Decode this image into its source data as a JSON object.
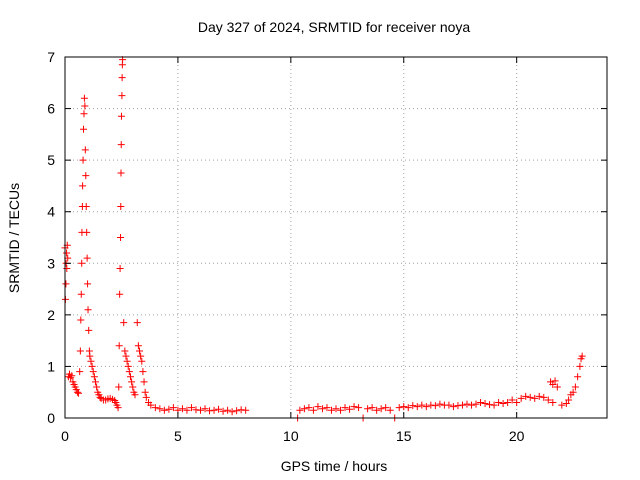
{
  "chart_data": {
    "type": "scatter",
    "title": "Day 327 of 2024, SRMTID for receiver noya",
    "xlabel": "GPS time / hours",
    "ylabel": "SRMTID / TECUs",
    "xlim": [
      0,
      24
    ],
    "ylim": [
      0,
      7
    ],
    "xticks": [
      0,
      5,
      10,
      15,
      20
    ],
    "yticks": [
      0,
      1,
      2,
      3,
      4,
      5,
      6,
      7
    ],
    "grid": true,
    "marker": "+",
    "series": [
      {
        "name": "SRMTID",
        "color": "#ff0000",
        "points": [
          [
            0.0,
            3.3
          ],
          [
            0.02,
            2.3
          ],
          [
            0.04,
            2.6
          ],
          [
            0.05,
            3.0
          ],
          [
            0.07,
            3.2
          ],
          [
            0.08,
            2.9
          ],
          [
            0.1,
            3.35
          ],
          [
            0.12,
            3.1
          ],
          [
            0.15,
            0.8
          ],
          [
            0.2,
            0.85
          ],
          [
            0.25,
            0.78
          ],
          [
            0.3,
            0.82
          ],
          [
            0.35,
            0.7
          ],
          [
            0.4,
            0.65
          ],
          [
            0.45,
            0.6
          ],
          [
            0.5,
            0.55
          ],
          [
            0.55,
            0.5
          ],
          [
            0.6,
            0.48
          ],
          [
            0.65,
            0.9
          ],
          [
            0.68,
            1.3
          ],
          [
            0.7,
            1.9
          ],
          [
            0.72,
            2.4
          ],
          [
            0.74,
            3.0
          ],
          [
            0.75,
            3.6
          ],
          [
            0.77,
            4.1
          ],
          [
            0.78,
            4.5
          ],
          [
            0.8,
            5.0
          ],
          [
            0.82,
            5.6
          ],
          [
            0.84,
            5.9
          ],
          [
            0.86,
            6.2
          ],
          [
            0.88,
            6.05
          ],
          [
            0.9,
            5.2
          ],
          [
            0.92,
            4.7
          ],
          [
            0.94,
            4.1
          ],
          [
            0.96,
            3.6
          ],
          [
            0.98,
            3.1
          ],
          [
            1.0,
            2.6
          ],
          [
            1.02,
            2.1
          ],
          [
            1.05,
            1.7
          ],
          [
            1.08,
            1.3
          ],
          [
            1.1,
            1.2
          ],
          [
            1.15,
            1.1
          ],
          [
            1.2,
            1.0
          ],
          [
            1.25,
            0.9
          ],
          [
            1.3,
            0.8
          ],
          [
            1.35,
            0.7
          ],
          [
            1.4,
            0.6
          ],
          [
            1.45,
            0.5
          ],
          [
            1.5,
            0.45
          ],
          [
            1.55,
            0.4
          ],
          [
            1.6,
            0.38
          ],
          [
            1.7,
            0.35
          ],
          [
            1.8,
            0.35
          ],
          [
            1.9,
            0.37
          ],
          [
            2.0,
            0.38
          ],
          [
            2.1,
            0.36
          ],
          [
            2.2,
            0.34
          ],
          [
            2.25,
            0.3
          ],
          [
            2.3,
            0.25
          ],
          [
            2.35,
            0.2
          ],
          [
            2.38,
            0.6
          ],
          [
            2.4,
            1.4
          ],
          [
            2.42,
            2.4
          ],
          [
            2.44,
            2.9
          ],
          [
            2.46,
            3.5
          ],
          [
            2.47,
            4.1
          ],
          [
            2.48,
            4.75
          ],
          [
            2.49,
            5.3
          ],
          [
            2.5,
            5.85
          ],
          [
            2.52,
            6.25
          ],
          [
            2.53,
            6.6
          ],
          [
            2.54,
            6.85
          ],
          [
            2.55,
            6.95
          ],
          [
            2.6,
            1.85
          ],
          [
            2.65,
            1.3
          ],
          [
            2.7,
            1.2
          ],
          [
            2.75,
            1.1
          ],
          [
            2.8,
            1.0
          ],
          [
            2.85,
            0.9
          ],
          [
            2.9,
            0.8
          ],
          [
            2.95,
            0.7
          ],
          [
            3.0,
            0.6
          ],
          [
            3.05,
            0.5
          ],
          [
            3.1,
            0.45
          ],
          [
            3.2,
            1.85
          ],
          [
            3.25,
            1.4
          ],
          [
            3.3,
            1.3
          ],
          [
            3.35,
            1.2
          ],
          [
            3.4,
            1.1
          ],
          [
            3.45,
            0.9
          ],
          [
            3.5,
            0.7
          ],
          [
            3.55,
            0.5
          ],
          [
            3.6,
            0.4
          ],
          [
            3.7,
            0.3
          ],
          [
            3.8,
            0.25
          ],
          [
            4.0,
            0.2
          ],
          [
            4.2,
            0.18
          ],
          [
            4.4,
            0.15
          ],
          [
            4.6,
            0.17
          ],
          [
            4.8,
            0.2
          ],
          [
            5.0,
            0.15
          ],
          [
            5.2,
            0.18
          ],
          [
            5.4,
            0.15
          ],
          [
            5.6,
            0.2
          ],
          [
            5.8,
            0.16
          ],
          [
            6.0,
            0.15
          ],
          [
            6.2,
            0.18
          ],
          [
            6.4,
            0.14
          ],
          [
            6.6,
            0.15
          ],
          [
            6.8,
            0.17
          ],
          [
            7.0,
            0.13
          ],
          [
            7.2,
            0.15
          ],
          [
            7.4,
            0.12
          ],
          [
            7.6,
            0.14
          ],
          [
            7.8,
            0.16
          ],
          [
            8.0,
            0.15
          ],
          [
            10.3,
            0.0
          ],
          [
            10.4,
            0.15
          ],
          [
            10.6,
            0.18
          ],
          [
            10.8,
            0.2
          ],
          [
            11.0,
            0.15
          ],
          [
            11.2,
            0.22
          ],
          [
            11.4,
            0.18
          ],
          [
            11.6,
            0.2
          ],
          [
            11.8,
            0.15
          ],
          [
            12.0,
            0.18
          ],
          [
            12.2,
            0.15
          ],
          [
            12.4,
            0.2
          ],
          [
            12.6,
            0.17
          ],
          [
            12.8,
            0.22
          ],
          [
            13.0,
            0.2
          ],
          [
            13.2,
            0.0
          ],
          [
            13.4,
            0.18
          ],
          [
            13.6,
            0.2
          ],
          [
            13.8,
            0.15
          ],
          [
            14.0,
            0.18
          ],
          [
            14.2,
            0.2
          ],
          [
            14.4,
            0.15
          ],
          [
            14.6,
            0.0
          ],
          [
            14.8,
            0.2
          ],
          [
            15.0,
            0.22
          ],
          [
            15.2,
            0.2
          ],
          [
            15.4,
            0.24
          ],
          [
            15.6,
            0.22
          ],
          [
            15.8,
            0.25
          ],
          [
            16.0,
            0.22
          ],
          [
            16.2,
            0.25
          ],
          [
            16.4,
            0.24
          ],
          [
            16.6,
            0.27
          ],
          [
            16.8,
            0.25
          ],
          [
            17.0,
            0.25
          ],
          [
            17.2,
            0.22
          ],
          [
            17.4,
            0.24
          ],
          [
            17.6,
            0.25
          ],
          [
            17.8,
            0.27
          ],
          [
            18.0,
            0.25
          ],
          [
            18.2,
            0.27
          ],
          [
            18.4,
            0.3
          ],
          [
            18.6,
            0.28
          ],
          [
            18.8,
            0.26
          ],
          [
            19.0,
            0.25
          ],
          [
            19.2,
            0.3
          ],
          [
            19.4,
            0.28
          ],
          [
            19.6,
            0.3
          ],
          [
            19.8,
            0.35
          ],
          [
            20.0,
            0.3
          ],
          [
            20.2,
            0.38
          ],
          [
            20.4,
            0.42
          ],
          [
            20.6,
            0.4
          ],
          [
            20.8,
            0.38
          ],
          [
            21.0,
            0.42
          ],
          [
            21.2,
            0.4
          ],
          [
            21.4,
            0.35
          ],
          [
            21.6,
            0.3
          ],
          [
            21.5,
            0.7
          ],
          [
            21.6,
            0.65
          ],
          [
            21.7,
            0.72
          ],
          [
            21.8,
            0.6
          ],
          [
            22.0,
            0.25
          ],
          [
            22.2,
            0.28
          ],
          [
            22.3,
            0.35
          ],
          [
            22.4,
            0.45
          ],
          [
            22.5,
            0.5
          ],
          [
            22.6,
            0.6
          ],
          [
            22.7,
            0.8
          ],
          [
            22.8,
            1.0
          ],
          [
            22.85,
            1.15
          ],
          [
            22.9,
            1.2
          ]
        ]
      }
    ]
  }
}
